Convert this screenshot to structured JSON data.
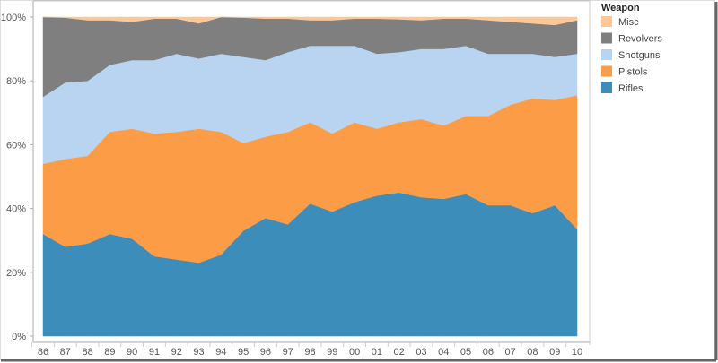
{
  "chart_data": {
    "type": "area",
    "stacked": "percent",
    "title": "",
    "xlabel": "",
    "ylabel": "",
    "ylim": [
      0,
      100
    ],
    "y_ticks": [
      "0%",
      "20%",
      "40%",
      "60%",
      "80%",
      "100%"
    ],
    "y_tick_values": [
      0,
      20,
      40,
      60,
      80,
      100
    ],
    "categories": [
      "86",
      "87",
      "88",
      "89",
      "90",
      "91",
      "92",
      "93",
      "94",
      "95",
      "96",
      "97",
      "98",
      "99",
      "00",
      "01",
      "02",
      "03",
      "04",
      "05",
      "06",
      "07",
      "08",
      "09",
      "10"
    ],
    "legend": {
      "title": "Weapon",
      "position": "right"
    },
    "series": [
      {
        "name": "Rifles",
        "color": "#3d8dbb",
        "values": [
          32,
          28,
          29,
          32,
          30.5,
          25,
          24,
          23,
          25.5,
          33,
          37,
          35,
          41.5,
          39,
          42,
          44,
          45,
          43.5,
          43,
          44.5,
          41,
          41,
          38.5,
          41,
          33.5
        ]
      },
      {
        "name": "Pistols",
        "color": "#fd9c47",
        "values": [
          22,
          27.5,
          27.5,
          32,
          34.5,
          38.5,
          40,
          42,
          38.5,
          27.5,
          25.5,
          29,
          25.5,
          24.5,
          25,
          21,
          22,
          24.5,
          23,
          24.5,
          28,
          31.5,
          36,
          33,
          42
        ]
      },
      {
        "name": "Shotguns",
        "color": "#b8d4f0",
        "values": [
          21,
          24,
          23.5,
          21,
          21.5,
          23,
          24.5,
          22,
          24.5,
          27,
          24,
          25,
          24,
          27.5,
          24,
          23.5,
          22,
          22,
          24,
          22,
          19.5,
          16,
          14,
          13.5,
          13
        ]
      },
      {
        "name": "Revolvers",
        "color": "#7f7f7f",
        "values": [
          25,
          20.3,
          19,
          14,
          12,
          13,
          11,
          11,
          11.5,
          12.3,
          13,
          10.5,
          8,
          8,
          8.5,
          11,
          10.3,
          9,
          9.5,
          8.5,
          10.5,
          10,
          9.5,
          10,
          10.5
        ]
      },
      {
        "name": "Misc",
        "color": "#fdc895",
        "values": [
          0,
          0.2,
          1,
          1,
          1.5,
          0.5,
          0.5,
          2,
          0,
          0.2,
          0.5,
          0.5,
          1,
          1,
          0.5,
          0.5,
          0.7,
          1,
          0.5,
          0.5,
          1,
          1.5,
          2,
          2.5,
          1
        ]
      }
    ],
    "legend_order": [
      "Misc",
      "Revolvers",
      "Shotguns",
      "Pistols",
      "Rifles"
    ]
  }
}
